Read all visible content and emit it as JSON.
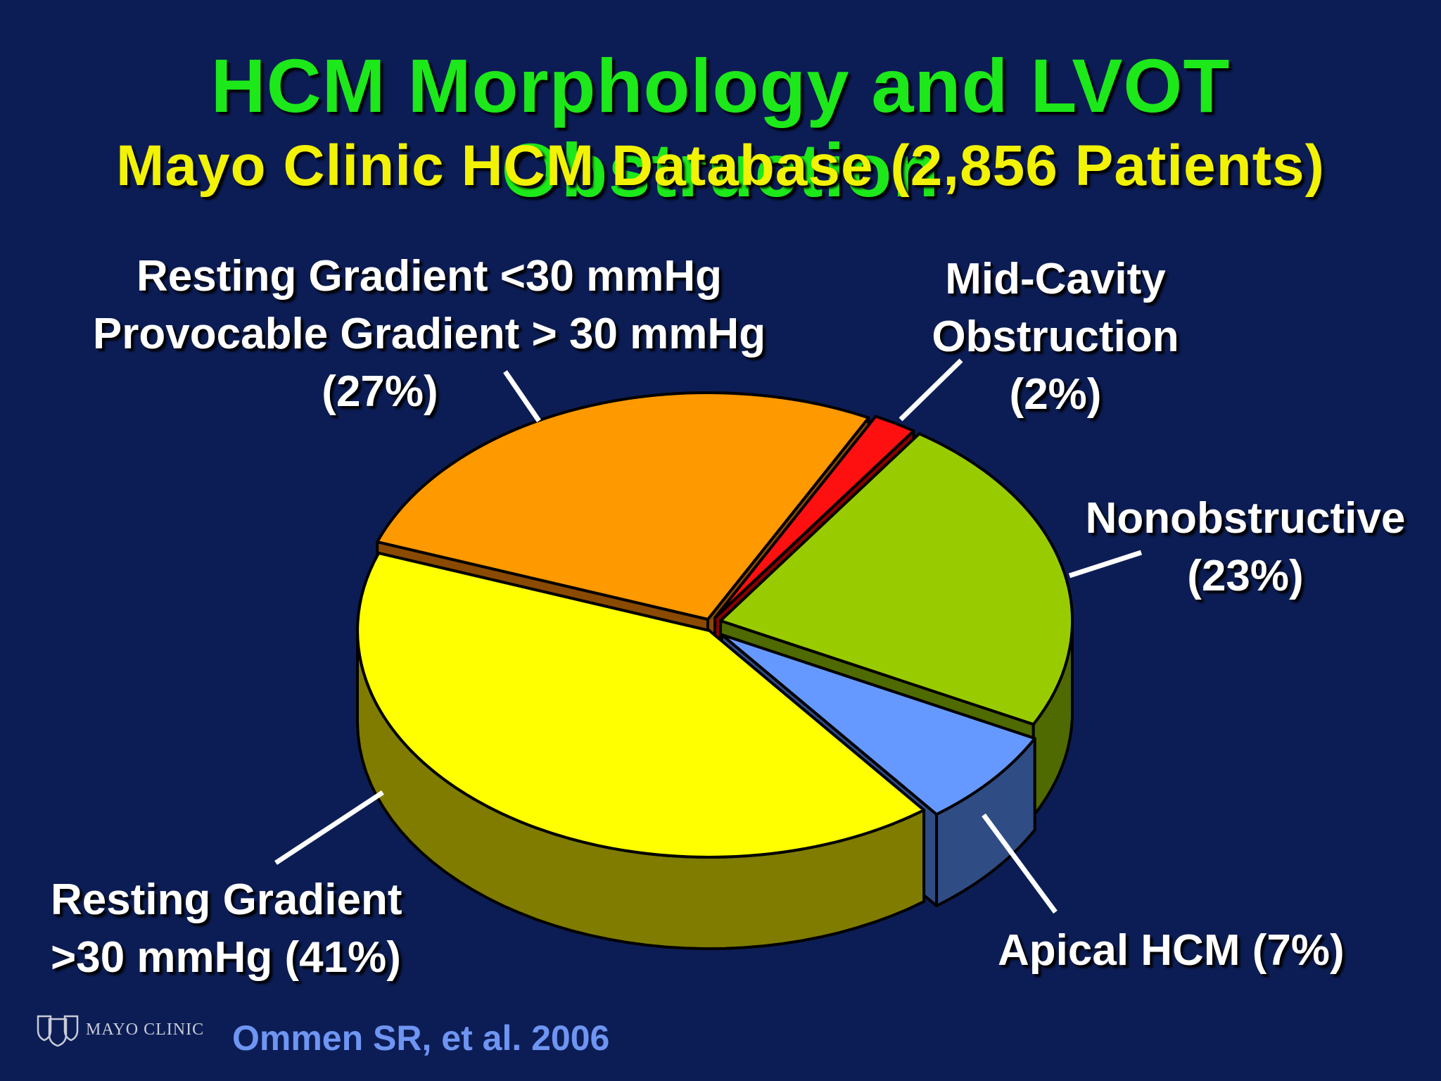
{
  "title": "HCM Morphology and LVOT Obstruction",
  "subtitle": "Mayo Clinic HCM Database (2,856 Patients)",
  "chart_data": {
    "type": "pie",
    "title": "HCM Morphology and LVOT Obstruction",
    "subtitle": "Mayo Clinic HCM Database (2,856 Patients)",
    "style": "3d-exploded",
    "slices": [
      {
        "key": "provocable",
        "label_lines": [
          "Resting Gradient <30 mmHg",
          "Provocable Gradient > 30 mmHg",
          "(27%)"
        ],
        "value": 27,
        "color": "#ff9900",
        "side_color": "#8a4a00"
      },
      {
        "key": "midcavity",
        "label_lines": [
          "Mid-Cavity",
          "Obstruction",
          "(2%)"
        ],
        "value": 2,
        "color": "#ff1010",
        "side_color": "#8a0000"
      },
      {
        "key": "nonobstructive",
        "label_lines": [
          "Nonobstructive",
          "(23%)"
        ],
        "value": 23,
        "color": "#99cc00",
        "side_color": "#4f6a00"
      },
      {
        "key": "apical",
        "label_lines": [
          "Apical HCM (7%)"
        ],
        "value": 7,
        "color": "#6699ff",
        "side_color": "#2f4c85"
      },
      {
        "key": "resting",
        "label_lines": [
          "Resting Gradient",
          ">30 mmHg (41%)"
        ],
        "value": 41,
        "color": "#ffff00",
        "side_color": "#7f7c00"
      }
    ]
  },
  "logo_text": "MAYO CLINIC",
  "citation": "Ommen SR, et al.  2006"
}
